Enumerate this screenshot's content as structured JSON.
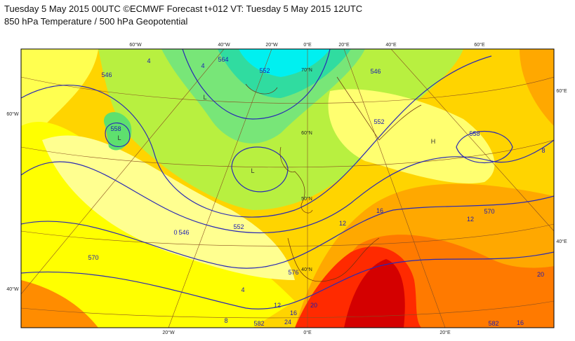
{
  "header": {
    "line1": "Tuesday 5 May 2015 00UTC ©ECMWF Forecast t+012 VT: Tuesday 5 May 2015 12UTC",
    "line2": "850 hPa Temperature / 500 hPa Geopotential"
  },
  "map": {
    "graticule_labels": [
      "60°W",
      "40°W",
      "20°W",
      "0°E",
      "20°E",
      "40°E",
      "60°E",
      "20°W",
      "0°E",
      "20°E",
      "60°W",
      "40°W",
      "60°E",
      "40°E",
      "70°N",
      "60°N",
      "50°N",
      "40°N"
    ],
    "geopotential_labels": [
      "546",
      "558",
      "552",
      "546",
      "570",
      "576",
      "582",
      "564",
      "552",
      "546",
      "552",
      "558",
      "570",
      "582"
    ],
    "temperature_labels": [
      "4",
      "4",
      "0",
      "8",
      "12",
      "16",
      "20",
      "24",
      "12",
      "16",
      "12",
      "20",
      "16",
      "8",
      "4"
    ],
    "centers": [
      "L",
      "L",
      "L",
      "H"
    ]
  }
}
